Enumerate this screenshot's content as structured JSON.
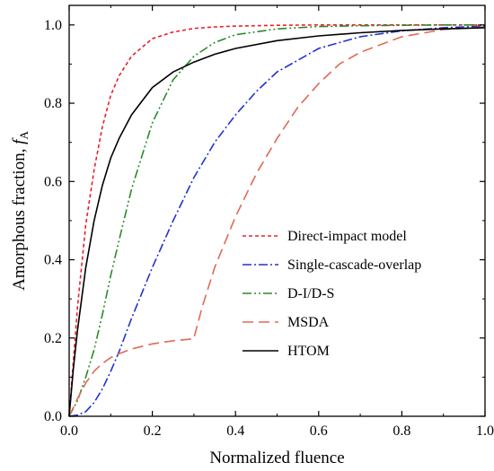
{
  "chart_data": {
    "type": "line",
    "xlabel": "Normalized fluence",
    "ylabel_main": "Amorphous fraction, ",
    "ylabel_symbol": "f",
    "ylabel_subscript": "A",
    "xlim": [
      0.0,
      1.0
    ],
    "ylim": [
      0.0,
      1.05
    ],
    "x_ticks": [
      0.0,
      0.2,
      0.4,
      0.6,
      0.8,
      1.0
    ],
    "x_tick_labels": [
      "0.0",
      "0.2",
      "0.4",
      "0.6",
      "0.8",
      "1.0"
    ],
    "y_ticks": [
      0.0,
      0.2,
      0.4,
      0.6,
      0.8,
      1.0
    ],
    "y_tick_labels": [
      "0.0",
      "0.2",
      "0.4",
      "0.6",
      "0.8",
      "1.0"
    ],
    "grid": false,
    "legend_position": "bottom-right",
    "series": [
      {
        "name": "Direct-impact model",
        "color": "#e8202a",
        "dash": "short-dash",
        "x": [
          0,
          0.02,
          0.04,
          0.06,
          0.08,
          0.1,
          0.12,
          0.15,
          0.2,
          0.25,
          0.3,
          0.35,
          0.4,
          0.5,
          0.6,
          0.7,
          0.8,
          0.9,
          1.0
        ],
        "y": [
          0,
          0.28,
          0.49,
          0.63,
          0.74,
          0.82,
          0.87,
          0.92,
          0.965,
          0.982,
          0.991,
          0.995,
          0.997,
          0.999,
          1.0,
          1.0,
          1.0,
          1.0,
          1.0
        ]
      },
      {
        "name": "Single-cascade-overlap",
        "color": "#2233cc",
        "dash": "dash-dot",
        "x": [
          0,
          0.02,
          0.04,
          0.06,
          0.08,
          0.1,
          0.12,
          0.15,
          0.2,
          0.25,
          0.3,
          0.35,
          0.4,
          0.45,
          0.5,
          0.55,
          0.6,
          0.7,
          0.8,
          0.9,
          1.0
        ],
        "y": [
          0,
          0.003,
          0.012,
          0.035,
          0.07,
          0.115,
          0.165,
          0.25,
          0.38,
          0.5,
          0.61,
          0.7,
          0.77,
          0.83,
          0.88,
          0.91,
          0.94,
          0.97,
          0.985,
          0.993,
          0.997
        ]
      },
      {
        "name": "D-I/D-S",
        "color": "#2a8a2a",
        "dash": "dash-dot-dot",
        "x": [
          0,
          0.02,
          0.04,
          0.06,
          0.08,
          0.1,
          0.12,
          0.15,
          0.2,
          0.25,
          0.3,
          0.35,
          0.4,
          0.5,
          0.6,
          0.7,
          0.8,
          0.9,
          1.0
        ],
        "y": [
          0,
          0.04,
          0.1,
          0.17,
          0.26,
          0.36,
          0.45,
          0.58,
          0.75,
          0.86,
          0.92,
          0.955,
          0.975,
          0.99,
          0.996,
          0.998,
          0.999,
          1.0,
          1.0
        ]
      },
      {
        "name": "MSDA",
        "color": "#e06a55",
        "dash": "long-dash",
        "x": [
          0,
          0.02,
          0.04,
          0.06,
          0.08,
          0.1,
          0.12,
          0.15,
          0.2,
          0.25,
          0.3,
          0.3,
          0.32,
          0.35,
          0.4,
          0.45,
          0.5,
          0.55,
          0.6,
          0.65,
          0.7,
          0.8,
          0.9,
          1.0
        ],
        "y": [
          0,
          0.045,
          0.085,
          0.115,
          0.135,
          0.15,
          0.16,
          0.172,
          0.185,
          0.193,
          0.198,
          0.2,
          0.28,
          0.38,
          0.51,
          0.62,
          0.71,
          0.79,
          0.85,
          0.9,
          0.93,
          0.97,
          0.988,
          0.995
        ]
      },
      {
        "name": "HTOM",
        "color": "#000000",
        "dash": "solid",
        "x": [
          0,
          0.01,
          0.02,
          0.04,
          0.06,
          0.08,
          0.1,
          0.12,
          0.15,
          0.2,
          0.25,
          0.3,
          0.35,
          0.4,
          0.5,
          0.6,
          0.7,
          0.8,
          0.9,
          1.0
        ],
        "y": [
          0,
          0.12,
          0.22,
          0.38,
          0.5,
          0.59,
          0.66,
          0.71,
          0.77,
          0.84,
          0.88,
          0.905,
          0.925,
          0.94,
          0.96,
          0.972,
          0.98,
          0.986,
          0.99,
          0.993
        ]
      }
    ]
  }
}
